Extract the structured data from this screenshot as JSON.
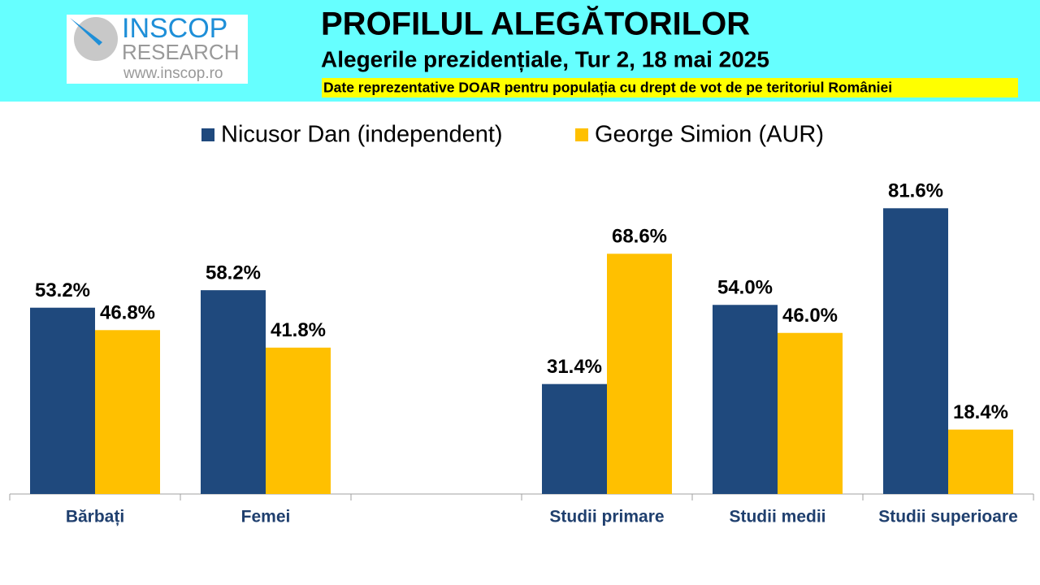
{
  "logo": {
    "name": "INSCOP",
    "subtitle": "RESEARCH",
    "url": "www.inscop.ro"
  },
  "chart_data": {
    "type": "bar",
    "title": "PROFILUL ALEGĂTORILOR",
    "subtitle": "Alegerile prezidențiale, Tur 2, 18 mai 2025",
    "note": "Date reprezentative DOAR pentru populația cu drept de vot de pe teritoriul României",
    "categories": [
      "Bărbați",
      "Femei",
      null,
      "Studii primare",
      "Studii medii",
      "Studii superioare"
    ],
    "series": [
      {
        "name": "Nicusor Dan (independent)",
        "color": "#1f497d",
        "values": [
          53.2,
          58.2,
          null,
          31.4,
          54.0,
          81.6
        ],
        "value_labels": [
          "53.2%",
          "58.2%",
          null,
          "31.4%",
          "54.0%",
          "81.6%"
        ]
      },
      {
        "name": "George Simion (AUR)",
        "color": "#ffc000",
        "values": [
          46.8,
          41.8,
          null,
          68.6,
          46.0,
          18.4
        ],
        "value_labels": [
          "46.8%",
          "41.8%",
          null,
          "68.6%",
          "46.0%",
          "18.4%"
        ]
      }
    ],
    "ylim": [
      0,
      100
    ],
    "legend": "top"
  }
}
